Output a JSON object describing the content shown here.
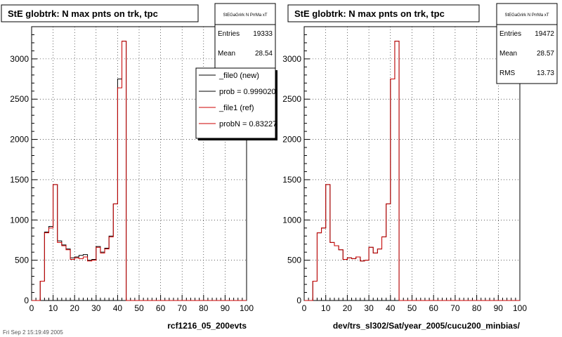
{
  "colors": {
    "new_series": "#000000",
    "ref_series": "#cc0000",
    "grid": "#000000",
    "background": "#ffffff"
  },
  "footer": "Fri Sep  2 15:19:49 2005",
  "chart_data": [
    {
      "type": "histogram",
      "title": "StE globtrk: N max pnts on trk, tpc",
      "xlabel": "rcf1216_05_200evts",
      "ylabel": "",
      "xlim": [
        0,
        100
      ],
      "ylim": [
        0,
        3400
      ],
      "xticks": [
        0,
        10,
        20,
        30,
        40,
        50,
        60,
        70,
        80,
        90,
        100
      ],
      "yticks": [
        0,
        500,
        1000,
        1500,
        2000,
        2500,
        3000
      ],
      "grid": true,
      "bin_width": 2,
      "bin_starts": [
        0,
        2,
        4,
        6,
        8,
        10,
        12,
        14,
        16,
        18,
        20,
        22,
        24,
        26,
        28,
        30,
        32,
        34,
        36,
        38,
        40,
        42,
        44,
        46,
        48,
        50,
        52,
        54,
        56,
        58,
        60,
        62,
        64,
        66,
        68,
        70,
        72,
        74,
        76,
        78,
        80,
        82,
        84,
        86,
        88,
        90,
        92,
        94,
        96,
        98
      ],
      "series": [
        {
          "name": "_file0 (new)",
          "color": "#000000",
          "values": [
            0,
            0,
            240,
            850,
            920,
            1440,
            740,
            690,
            640,
            530,
            540,
            560,
            570,
            500,
            510,
            670,
            600,
            650,
            800,
            1200,
            2750,
            3220,
            0,
            0,
            0,
            0,
            0,
            0,
            0,
            0,
            0,
            0,
            0,
            0,
            0,
            0,
            0,
            0,
            0,
            0,
            0,
            0,
            0,
            0,
            0,
            0,
            0,
            0,
            0,
            0
          ]
        },
        {
          "name": "_file1 (ref)",
          "color": "#cc0000",
          "values": [
            0,
            0,
            240,
            840,
            900,
            1440,
            720,
            680,
            630,
            510,
            530,
            520,
            540,
            490,
            500,
            660,
            590,
            640,
            790,
            1200,
            2640,
            3220,
            0,
            0,
            0,
            0,
            0,
            0,
            0,
            0,
            0,
            0,
            0,
            0,
            0,
            0,
            0,
            0,
            0,
            0,
            0,
            0,
            0,
            0,
            0,
            0,
            0,
            0,
            0,
            0
          ]
        }
      ],
      "stats": {
        "name": "StEGaGrirk N PrrMa xT",
        "rows": [
          {
            "label": "Entries",
            "value": "19333"
          },
          {
            "label": "Mean",
            "value": "28.54"
          }
        ]
      },
      "legend": {
        "placement": "top-right",
        "entries": [
          {
            "label": "_file0 (new)",
            "color": "#000000"
          },
          {
            "label": "prob = 0.999020",
            "color": "#000000"
          },
          {
            "label": "_file1 (ref)",
            "color": "#cc0000"
          },
          {
            "label": "probN = 0.832274",
            "color": "#cc0000"
          }
        ]
      }
    },
    {
      "type": "histogram",
      "title": "StE globtrk: N max pnts on trk, tpc",
      "xlabel": "dev/trs_sl302/Sat/year_2005/cucu200_minbias/",
      "ylabel": "",
      "xlim": [
        0,
        100
      ],
      "ylim": [
        0,
        3400
      ],
      "xticks": [
        0,
        10,
        20,
        30,
        40,
        50,
        60,
        70,
        80,
        90,
        100
      ],
      "yticks": [
        0,
        500,
        1000,
        1500,
        2000,
        2500,
        3000
      ],
      "grid": true,
      "bin_width": 2,
      "bin_starts": [
        0,
        2,
        4,
        6,
        8,
        10,
        12,
        14,
        16,
        18,
        20,
        22,
        24,
        26,
        28,
        30,
        32,
        34,
        36,
        38,
        40,
        42,
        44,
        46,
        48,
        50,
        52,
        54,
        56,
        58,
        60,
        62,
        64,
        66,
        68,
        70,
        72,
        74,
        76,
        78,
        80,
        82,
        84,
        86,
        88,
        90,
        92,
        94,
        96,
        98
      ],
      "series": [
        {
          "name": "",
          "color": "#000000",
          "values": [
            0,
            0,
            240,
            840,
            900,
            1440,
            720,
            680,
            630,
            510,
            530,
            520,
            540,
            490,
            500,
            660,
            590,
            640,
            790,
            1200,
            2750,
            3220,
            0,
            0,
            0,
            0,
            0,
            0,
            0,
            0,
            0,
            0,
            0,
            0,
            0,
            0,
            0,
            0,
            0,
            0,
            0,
            0,
            0,
            0,
            0,
            0,
            0,
            0,
            0,
            0
          ]
        },
        {
          "name": "",
          "color": "#cc0000",
          "values": [
            0,
            0,
            240,
            840,
            900,
            1440,
            720,
            680,
            630,
            510,
            530,
            520,
            540,
            490,
            500,
            660,
            590,
            640,
            790,
            1200,
            2750,
            3220,
            0,
            0,
            0,
            0,
            0,
            0,
            0,
            0,
            0,
            0,
            0,
            0,
            0,
            0,
            0,
            0,
            0,
            0,
            0,
            0,
            0,
            0,
            0,
            0,
            0,
            0,
            0,
            0
          ]
        }
      ],
      "stats": {
        "name": "StEGaGrirk N PrrMa xT",
        "rows": [
          {
            "label": "Entries",
            "value": "19472"
          },
          {
            "label": "Mean",
            "value": "28.57"
          },
          {
            "label": "RMS",
            "value": "13.73"
          }
        ]
      },
      "legend": null
    }
  ]
}
